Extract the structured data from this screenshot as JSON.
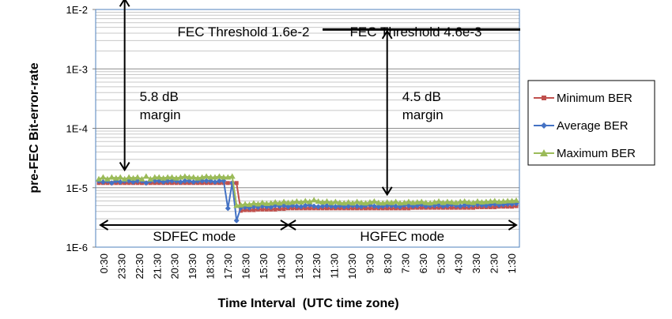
{
  "chart_data": {
    "type": "line",
    "title": "",
    "xlabel": "Time Interval  (UTC time zone)",
    "ylabel": "pre-FEC Bit-error-rate",
    "y_scale": "log",
    "ylim": [
      1e-06,
      0.01
    ],
    "y_ticks": [
      "1E-6",
      "1E-5",
      "1E-4",
      "1E-3",
      "1E-2"
    ],
    "categories": [
      "0:30",
      "23:30",
      "22:30",
      "21:30",
      "20:30",
      "19:30",
      "18:30",
      "17:30",
      "16:30",
      "15:30",
      "14:30",
      "13:30",
      "12:30",
      "11:30",
      "10:30",
      "9:30",
      "8:30",
      "7:30",
      "6:30",
      "5:30",
      "4:30",
      "3:30",
      "2:30",
      "1:30"
    ],
    "x": [
      0,
      1,
      2,
      3,
      4,
      5,
      6,
      7,
      8,
      9,
      10,
      11,
      12,
      13,
      14,
      15,
      16,
      17,
      18,
      19,
      20,
      21,
      22,
      23,
      24,
      25,
      26,
      27,
      28,
      29,
      30,
      31,
      32,
      33,
      34,
      35,
      36,
      37,
      38,
      39,
      40,
      41,
      42,
      43,
      44,
      45,
      46,
      47,
      48,
      49,
      50,
      51,
      52,
      53,
      54,
      55,
      56,
      57,
      58,
      59,
      60,
      61,
      62,
      63,
      64,
      65,
      66,
      67,
      68,
      69,
      70,
      71,
      72,
      73,
      74,
      75,
      76,
      77,
      78,
      79,
      80,
      81,
      82,
      83,
      84,
      85,
      86,
      87,
      88,
      89,
      90,
      91,
      92,
      93,
      94,
      95,
      96,
      97
    ],
    "series": [
      {
        "name": "Minimum BER",
        "color": "#c0504d",
        "marker": "square",
        "values": [
          1.2e-05,
          1.2e-05,
          1.2e-05,
          1.2e-05,
          1.2e-05,
          1.2e-05,
          1.2e-05,
          1.2e-05,
          1.2e-05,
          1.2e-05,
          1.2e-05,
          1.2e-05,
          1.2e-05,
          1.2e-05,
          1.2e-05,
          1.2e-05,
          1.2e-05,
          1.2e-05,
          1.2e-05,
          1.2e-05,
          1.2e-05,
          1.2e-05,
          1.2e-05,
          1.2e-05,
          1.2e-05,
          1.2e-05,
          1.2e-05,
          1.2e-05,
          1.2e-05,
          1.2e-05,
          1.2e-05,
          1.2e-05,
          1.2e-05,
          4.1e-06,
          4.2e-06,
          4.2e-06,
          4.2e-06,
          4.3e-06,
          4.3e-06,
          4.3e-06,
          4.3e-06,
          4.3e-06,
          4.4e-06,
          4.4e-06,
          4.5e-06,
          4.5e-06,
          4.5e-06,
          4.5e-06,
          4.5e-06,
          4.5e-06,
          4.5e-06,
          4.5e-06,
          4.5e-06,
          4.5e-06,
          4.5e-06,
          4.5e-06,
          4.5e-06,
          4.5e-06,
          4.5e-06,
          4.5e-06,
          4.5e-06,
          4.5e-06,
          4.5e-06,
          4.5e-06,
          4.5e-06,
          4.5e-06,
          4.5e-06,
          4.5e-06,
          4.5e-06,
          4.5e-06,
          4.5e-06,
          4.5e-06,
          4.5e-06,
          4.6e-06,
          4.6e-06,
          4.6e-06,
          4.6e-06,
          4.6e-06,
          4.6e-06,
          4.6e-06,
          4.6e-06,
          4.6e-06,
          4.6e-06,
          4.6e-06,
          4.6e-06,
          4.6e-06,
          4.6e-06,
          4.6e-06,
          4.7e-06,
          4.7e-06,
          4.7e-06,
          4.7e-06,
          4.7e-06,
          4.8e-06,
          4.8e-06,
          4.8e-06,
          4.8e-06,
          4.9e-06
        ]
      },
      {
        "name": "Average BER",
        "color": "#4472c4",
        "marker": "diamond",
        "values": [
          1.3e-05,
          1.25e-05,
          1.3e-05,
          1.2e-05,
          1.3e-05,
          1.25e-05,
          1.3e-05,
          1.3e-05,
          1.25e-05,
          1.3e-05,
          1.3e-05,
          1.2e-05,
          1.3e-05,
          1.3e-05,
          1.3e-05,
          1.25e-05,
          1.3e-05,
          1.3e-05,
          1.3e-05,
          1.25e-05,
          1.3e-05,
          1.3e-05,
          1.25e-05,
          1.3e-05,
          1.3e-05,
          1.3e-05,
          1.3e-05,
          1.25e-05,
          1.3e-05,
          1.3e-05,
          4.5e-06,
          1.2e-05,
          2.8e-06,
          4.6e-06,
          4.7e-06,
          4.6e-06,
          4.8e-06,
          4.7e-06,
          4.9e-06,
          4.8e-06,
          4.7e-06,
          5e-06,
          4.9e-06,
          5e-06,
          4.8e-06,
          5e-06,
          4.9e-06,
          4.8e-06,
          5e-06,
          5.1e-06,
          4.9e-06,
          4.8e-06,
          4.9e-06,
          5e-06,
          4.9e-06,
          4.8e-06,
          5e-06,
          4.8e-06,
          4.9e-06,
          5e-06,
          4.9e-06,
          4.8e-06,
          5e-06,
          5.1e-06,
          4.9e-06,
          4.8e-06,
          4.9e-06,
          5e-06,
          5e-06,
          4.9e-06,
          4.8e-06,
          5.1e-06,
          5e-06,
          4.9e-06,
          5e-06,
          5.2e-06,
          4.9e-06,
          5e-06,
          5e-06,
          5.1e-06,
          4.9e-06,
          5e-06,
          5.2e-06,
          5e-06,
          4.9e-06,
          5.1e-06,
          5e-06,
          5.1e-06,
          5.2e-06,
          5.1e-06,
          5e-06,
          5.2e-06,
          5.3e-06,
          5.1e-06,
          5.2e-06,
          5.3e-06,
          5.3e-06,
          5.4e-06
        ]
      },
      {
        "name": "Maximum BER",
        "color": "#9bbb59",
        "marker": "triangle",
        "values": [
          1.4e-05,
          1.5e-05,
          1.4e-05,
          1.5e-05,
          1.45e-05,
          1.5e-05,
          1.4e-05,
          1.5e-05,
          1.45e-05,
          1.5e-05,
          1.4e-05,
          1.55e-05,
          1.4e-05,
          1.5e-05,
          1.5e-05,
          1.45e-05,
          1.5e-05,
          1.5e-05,
          1.45e-05,
          1.5e-05,
          1.55e-05,
          1.5e-05,
          1.5e-05,
          1.45e-05,
          1.5e-05,
          1.55e-05,
          1.5e-05,
          1.5e-05,
          1.55e-05,
          1.5e-05,
          1.5e-05,
          1.55e-05,
          5e-06,
          5.1e-06,
          5.3e-06,
          5.2e-06,
          5.5e-06,
          5.3e-06,
          5.6e-06,
          5.4e-06,
          5.5e-06,
          5.7e-06,
          5.5e-06,
          5.8e-06,
          5.6e-06,
          5.7e-06,
          5.9e-06,
          5.7e-06,
          6e-06,
          5.8e-06,
          6.2e-06,
          5.9e-06,
          5.7e-06,
          5.9e-06,
          5.6e-06,
          5.8e-06,
          5.6e-06,
          5.5e-06,
          5.7e-06,
          5.5e-06,
          5.8e-06,
          5.6e-06,
          5.5e-06,
          5.7e-06,
          5.9e-06,
          5.6e-06,
          5.5e-06,
          5.7e-06,
          5.6e-06,
          5.8e-06,
          5.5e-06,
          5.6e-06,
          5.8e-06,
          5.6e-06,
          5.7e-06,
          5.8e-06,
          5.6e-06,
          5.5e-06,
          5.7e-06,
          5.9e-06,
          5.6e-06,
          5.8e-06,
          5.7e-06,
          5.6e-06,
          5.8e-06,
          5.9e-06,
          5.7e-06,
          5.6e-06,
          5.9e-06,
          5.7e-06,
          5.8e-06,
          5.9e-06,
          6e-06,
          5.8e-06,
          5.9e-06,
          6e-06,
          6e-06,
          6.1e-06
        ]
      }
    ],
    "legend": "right",
    "grid": true,
    "thresholds": [
      {
        "label": "FEC Threshold 1.6e-2",
        "value": 0.016,
        "x_start": -4,
        "x_end": 52
      },
      {
        "label": "FEC Threshold 4.6e-3",
        "value": 0.0046,
        "x_start": 52,
        "x_end": 99
      }
    ],
    "annotations": [
      {
        "line1": "5.8 dB",
        "line2": "margin",
        "x": 6,
        "from": 0.016,
        "to": 1.3e-05
      },
      {
        "line1": "4.5 dB",
        "line2": "margin",
        "x": 67,
        "from": 0.0046,
        "to": 5e-06
      }
    ],
    "modes": [
      {
        "label": "SDFEC mode",
        "x_start": 0,
        "x_end": 44
      },
      {
        "label": "HGFEC mode",
        "x_start": 44,
        "x_end": 97
      }
    ]
  }
}
